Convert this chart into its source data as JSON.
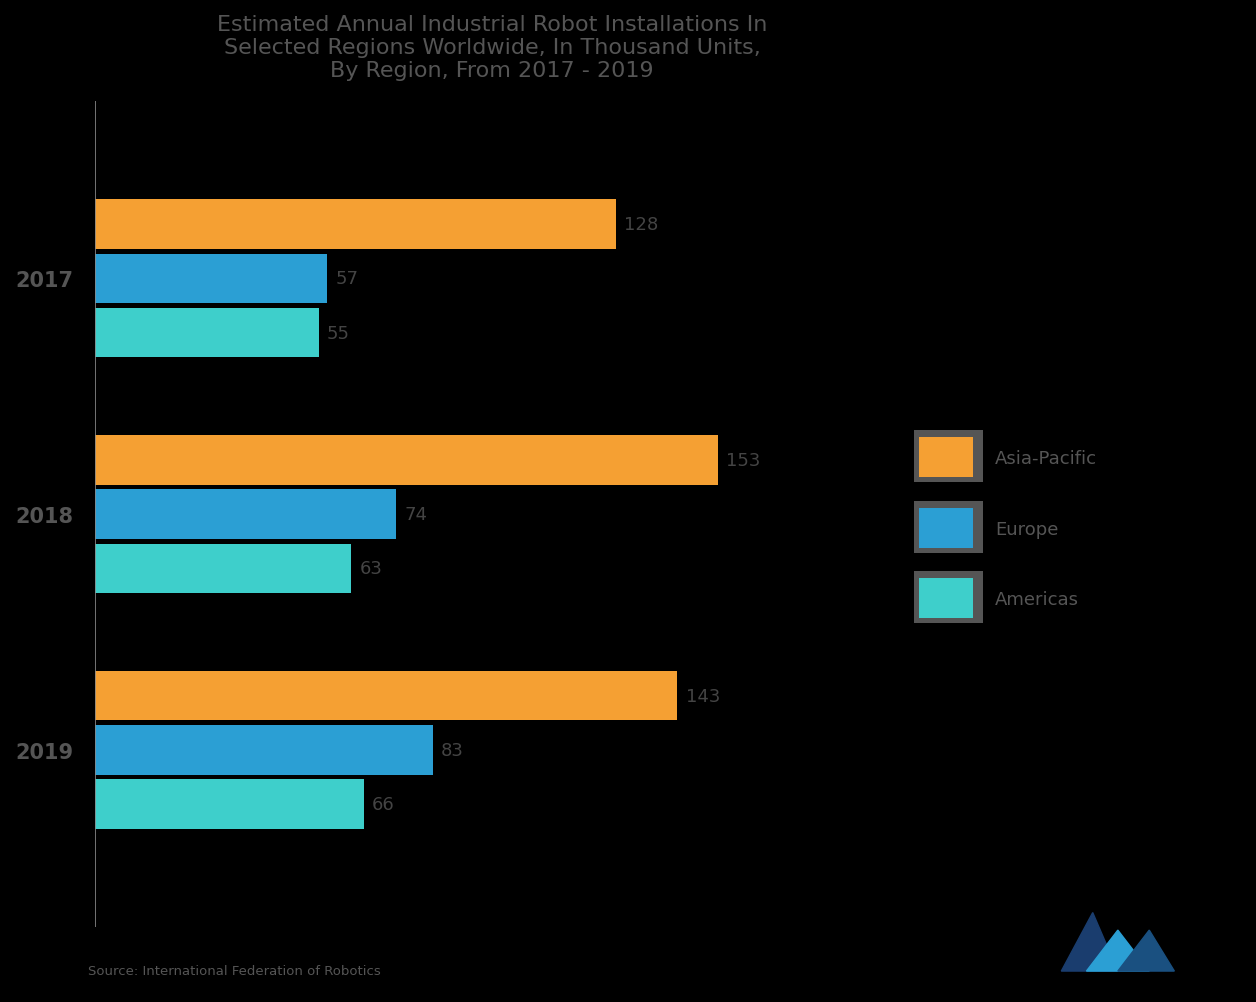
{
  "title_line1": "Estimated Annual Industrial Robot Installations In",
  "title_line2": "Selected Regions Worldwide, In Thousand Units,",
  "title_line3": "By Region, From 2017 - 2019",
  "years": [
    "2019",
    "2018",
    "2017"
  ],
  "legend_labels": [
    "Americas",
    "Europe",
    "Asia-Pacific"
  ],
  "colors": [
    "#3ECFCB",
    "#2B9FD4",
    "#F5A033"
  ],
  "values": {
    "2019": [
      66,
      83,
      143
    ],
    "2018": [
      63,
      74,
      153
    ],
    "2017": [
      55,
      57,
      128
    ]
  },
  "bar_labels": {
    "2019": [
      "66",
      "83",
      "143"
    ],
    "2018": [
      "63",
      "74",
      "153"
    ],
    "2017": [
      "55",
      "57",
      "128"
    ]
  },
  "background_color": "#000000",
  "text_color": "#4a4a4a",
  "label_color": "#444444",
  "year_label_color": "#555555",
  "bar_height": 0.21,
  "bar_gap": 0.23,
  "source_text": "Source: International Federation of Robotics",
  "xlim": [
    0,
    195
  ],
  "legend_border_color": "#777777"
}
